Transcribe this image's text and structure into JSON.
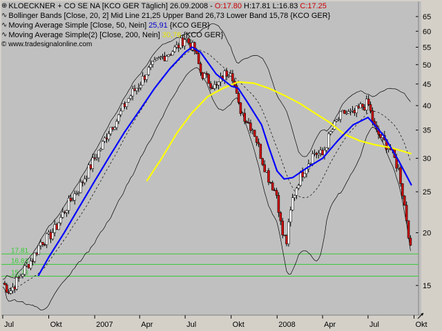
{
  "header": {
    "icon": "candle-icon",
    "line1_prefix": "KLOECKNER + CO SE NA [KCO GER  Täglich] 26.09.2008 - ",
    "line1_open": "O:17.80",
    "line1_mid": " H:17.81 L:16.83 ",
    "line1_close": "C:17.25",
    "line2": "Bollinger Bands [Close, 20, 2] Mid Line 21,25 Upper Band 26,73 Lower Band 15,78 {KCO GER}",
    "line3_prefix": "Moving Average Simple [Close, 50, Nein] ",
    "line3_value": "25,91",
    "line3_suffix": " {KCO GER}",
    "line4_prefix": "Moving Average Simple(2) [Close, 200, Nein] ",
    "line4_value": "30,76",
    "line4_suffix": " {KCO GER}",
    "copyright": "© www.tradesignalonline.com"
  },
  "colors": {
    "background": "#c0c0c0",
    "frame": "#d4d0c8",
    "candle_up": "#ffffff",
    "candle_down": "#cc0000",
    "ma50": "#0000ff",
    "ma200": "#ffff00",
    "bollinger": "#000000",
    "guide_lines": "#33cc33"
  },
  "chart_data": {
    "type": "line",
    "y_scale": "log",
    "ylim": [
      13,
      68
    ],
    "y_ticks": [
      15,
      20,
      25,
      30,
      35,
      40,
      45,
      50,
      55,
      60,
      65
    ],
    "x_range": [
      "2006-07-01",
      "2008-10-10"
    ],
    "x_ticks": [
      {
        "label": "Jul",
        "date": "2006-07-01"
      },
      {
        "label": "Okt",
        "date": "2006-10-01"
      },
      {
        "label": "2007",
        "date": "2007-01-01"
      },
      {
        "label": "Apr",
        "date": "2007-04-01"
      },
      {
        "label": "Jul",
        "date": "2007-07-01"
      },
      {
        "label": "Okt",
        "date": "2007-10-01"
      },
      {
        "label": "2008",
        "date": "2008-01-01"
      },
      {
        "label": "Apr",
        "date": "2008-04-01"
      },
      {
        "label": "Jul",
        "date": "2008-07-01"
      },
      {
        "label": "Okt",
        "date": "2008-10-01"
      }
    ],
    "horizontal_lines": [
      {
        "value": 17.81,
        "label": "17.81"
      },
      {
        "value": 16.83,
        "label": "16.83"
      },
      {
        "value": 15.78,
        "label": "15.78"
      }
    ],
    "series": [
      {
        "name": "KLOECKNER + CO SE NA Close",
        "x": [
          "2006-07-01",
          "2006-07-15",
          "2006-08-01",
          "2006-08-15",
          "2006-09-01",
          "2006-09-15",
          "2006-10-01",
          "2006-10-15",
          "2006-11-01",
          "2006-11-15",
          "2006-12-01",
          "2006-12-15",
          "2007-01-01",
          "2007-01-15",
          "2007-02-01",
          "2007-02-15",
          "2007-03-01",
          "2007-03-15",
          "2007-04-01",
          "2007-04-15",
          "2007-05-01",
          "2007-05-15",
          "2007-06-01",
          "2007-06-15",
          "2007-07-01",
          "2007-07-10",
          "2007-07-20",
          "2007-08-01",
          "2007-08-15",
          "2007-09-01",
          "2007-09-15",
          "2007-10-01",
          "2007-10-15",
          "2007-11-01",
          "2007-11-15",
          "2007-12-01",
          "2007-12-15",
          "2008-01-01",
          "2008-01-10",
          "2008-01-20",
          "2008-02-01",
          "2008-02-15",
          "2008-03-01",
          "2008-03-15",
          "2008-04-01",
          "2008-04-15",
          "2008-05-01",
          "2008-05-15",
          "2008-06-01",
          "2008-06-15",
          "2008-07-01",
          "2008-07-15",
          "2008-08-01",
          "2008-08-15",
          "2008-09-01",
          "2008-09-10",
          "2008-09-20",
          "2008-09-26"
        ],
        "values": [
          15.2,
          14.5,
          15.5,
          16.5,
          17.5,
          19.0,
          19.5,
          20.5,
          22.5,
          24.0,
          25.5,
          27.5,
          30.0,
          32.0,
          35.5,
          37.0,
          40.0,
          42.5,
          45.0,
          48.0,
          50.0,
          52.0,
          53.5,
          55.0,
          58.0,
          56.0,
          54.0,
          48.0,
          46.0,
          44.0,
          47.0,
          49.0,
          40.0,
          37.0,
          35.0,
          30.0,
          27.0,
          24.5,
          20.0,
          19.0,
          24.0,
          27.0,
          29.0,
          31.0,
          30.5,
          34.0,
          37.0,
          38.5,
          38.0,
          39.5,
          40.5,
          35.0,
          33.0,
          31.5,
          28.0,
          24.0,
          20.0,
          17.25
        ]
      },
      {
        "name": "Moving Average Simple [Close, 50, Nein]",
        "x": [
          "2006-09-10",
          "2006-10-01",
          "2006-11-01",
          "2006-12-01",
          "2007-01-01",
          "2007-02-01",
          "2007-03-01",
          "2007-04-01",
          "2007-05-01",
          "2007-06-01",
          "2007-07-01",
          "2007-07-15",
          "2007-08-01",
          "2007-09-01",
          "2007-10-01",
          "2007-10-15",
          "2007-11-01",
          "2007-12-01",
          "2007-12-15",
          "2008-01-01",
          "2008-01-15",
          "2008-02-01",
          "2008-03-01",
          "2008-04-01",
          "2008-05-01",
          "2008-06-01",
          "2008-07-01",
          "2008-08-01",
          "2008-09-01",
          "2008-09-26"
        ],
        "values": [
          15.8,
          17.5,
          20.0,
          23.0,
          26.5,
          30.5,
          34.5,
          39.0,
          44.0,
          49.0,
          53.5,
          55.0,
          53.5,
          47.5,
          44.5,
          44.0,
          41.0,
          36.0,
          32.0,
          28.0,
          26.8,
          27.0,
          28.5,
          30.0,
          33.0,
          36.0,
          37.5,
          34.0,
          29.5,
          25.9
        ]
      },
      {
        "name": "Moving Average Simple(2) [Close, 200, Nein]",
        "x": [
          "2007-04-15",
          "2007-05-15",
          "2007-06-15",
          "2007-07-15",
          "2007-08-15",
          "2007-09-15",
          "2007-10-15",
          "2007-11-15",
          "2007-12-15",
          "2008-01-15",
          "2008-02-15",
          "2008-03-15",
          "2008-04-15",
          "2008-05-15",
          "2008-06-15",
          "2008-07-15",
          "2008-08-15",
          "2008-09-26"
        ],
        "values": [
          26.5,
          30.0,
          34.5,
          38.5,
          42.0,
          44.0,
          45.5,
          45.2,
          44.0,
          42.3,
          40.5,
          38.5,
          36.5,
          34.2,
          33.0,
          32.3,
          31.8,
          30.76
        ]
      }
    ]
  }
}
